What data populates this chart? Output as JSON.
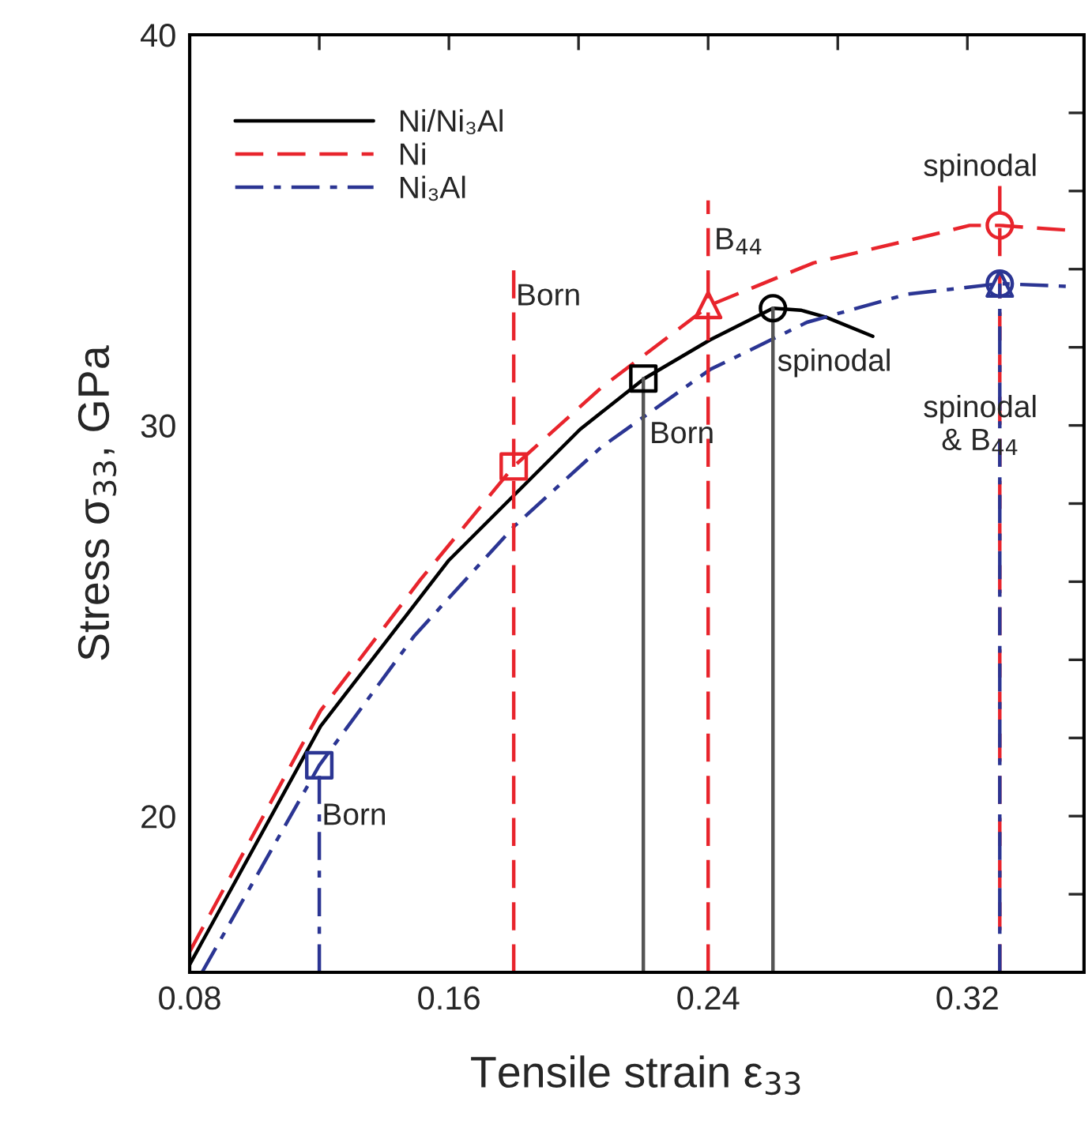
{
  "chart_data": {
    "type": "line",
    "xlabel": "Tensile strain ε$_{33}$",
    "ylabel": "Stress σ$_{33}$, GPa",
    "xlim": [
      0.08,
      0.356
    ],
    "ylim": [
      16,
      40
    ],
    "xticks": [
      0.08,
      {
        "value": 0.12,
        "label": null
      },
      0.16,
      {
        "value": 0.2,
        "label": null
      },
      0.24,
      {
        "value": 0.28,
        "label": null
      },
      0.32
    ],
    "yticks": [
      {
        "value": 18,
        "label": null
      },
      20,
      {
        "value": 22,
        "label": null
      },
      {
        "value": 24,
        "label": null
      },
      {
        "value": 26,
        "label": null
      },
      {
        "value": 28,
        "label": null
      },
      30,
      {
        "value": 32,
        "label": null
      },
      {
        "value": 34,
        "label": null
      },
      {
        "value": 36,
        "label": null
      },
      {
        "value": 38,
        "label": null
      },
      40
    ],
    "grid": false,
    "legend": "top left",
    "series": [
      {
        "name": "Ni/Ni₃Al",
        "color": "#000000",
        "line_style": "solid",
        "x": [
          0.08,
          0.1204,
          0.16,
          0.2005,
          0.2203,
          0.2406,
          0.26,
          0.2686,
          0.2764,
          0.2908
        ],
        "values": [
          16.2,
          22.3,
          26.55,
          29.9,
          31.2,
          32.19,
          33.0,
          32.95,
          32.77,
          32.28
        ]
      },
      {
        "name": "Ni",
        "color": "#e8242c",
        "line_style": "dashed",
        "x": [
          0.08,
          0.1204,
          0.1513,
          0.18,
          0.2068,
          0.2406,
          0.2725,
          0.3091,
          0.3207,
          0.33,
          0.3506
        ],
        "values": [
          16.53,
          22.7,
          26.06,
          28.95,
          30.95,
          33.08,
          34.16,
          34.88,
          35.12,
          35.12,
          35.0
        ]
      },
      {
        "name": "Ni₃Al",
        "color": "#2b3593",
        "line_style": "dashdot",
        "x": [
          0.0838,
          0.12,
          0.1494,
          0.1803,
          0.2068,
          0.2406,
          0.2705,
          0.3014,
          0.33,
          0.3506
        ],
        "values": [
          16.0,
          21.3,
          24.62,
          27.43,
          29.43,
          31.43,
          32.64,
          33.36,
          33.63,
          33.56
        ]
      },
      {
        "type": "line",
        "color": "#2b3593",
        "line_style": "dashdot",
        "x": [
          0.12,
          0.12
        ],
        "values": [
          16,
          21.3
        ]
      },
      {
        "type": "line",
        "color": "#e8242c",
        "line_style": "dashed",
        "x": [
          0.18,
          0.18
        ],
        "values": [
          16,
          34.08
        ]
      },
      {
        "type": "line",
        "color": "#555555",
        "line_style": "solid",
        "x": [
          0.22,
          0.22
        ],
        "values": [
          16,
          31.2
        ]
      },
      {
        "type": "line",
        "color": "#e8242c",
        "line_style": "dashed",
        "x": [
          0.24,
          0.24
        ],
        "values": [
          16,
          35.76
        ]
      },
      {
        "type": "line",
        "color": "#555555",
        "line_style": "solid",
        "x": [
          0.26,
          0.26
        ],
        "values": [
          16,
          33.0
        ]
      },
      {
        "type": "line",
        "color": "#e8242c",
        "line_style": "dashed",
        "x": [
          0.33,
          0.33
        ],
        "values": [
          16,
          36.16
        ]
      },
      {
        "type": "line",
        "color": "#2b3593",
        "line_style": "dashdot",
        "x": [
          0.33,
          0.33
        ],
        "values": [
          16,
          33.63
        ]
      },
      {
        "type": "scatter",
        "color": "#2b3593",
        "marker": "square",
        "x": [
          0.12
        ],
        "values": [
          21.3
        ]
      },
      {
        "type": "scatter",
        "color": "#e8242c",
        "marker": "square",
        "x": [
          0.18
        ],
        "values": [
          28.95
        ]
      },
      {
        "type": "scatter",
        "color": "#000000",
        "marker": "square",
        "x": [
          0.22
        ],
        "values": [
          31.2
        ]
      },
      {
        "type": "scatter",
        "color": "#e8242c",
        "marker": "triangle",
        "x": [
          0.24
        ],
        "values": [
          33.08
        ]
      },
      {
        "type": "scatter",
        "color": "#000000",
        "marker": "circle",
        "x": [
          0.26
        ],
        "values": [
          33.0
        ]
      },
      {
        "type": "scatter",
        "color": "#e8242c",
        "marker": "circle",
        "x": [
          0.33
        ],
        "values": [
          35.12
        ]
      },
      {
        "type": "scatter",
        "color": "#2b3593",
        "marker": "circle",
        "x": [
          0.33
        ],
        "values": [
          33.63
        ]
      },
      {
        "type": "scatter",
        "color": "#2b3593",
        "marker": "triangle",
        "x": [
          0.33
        ],
        "values": [
          33.63
        ]
      }
    ],
    "annotations": [
      {
        "text": "Born",
        "x": 0.1208,
        "y": 19.98
      },
      {
        "text": "Born",
        "x": 0.1807,
        "y": 33.28
      },
      {
        "text": "Born",
        "x": 0.2219,
        "y": 29.75
      },
      {
        "text": "B$_{44}$",
        "x": 0.2419,
        "y": 34.71
      },
      {
        "text": "spinodal",
        "x": 0.2613,
        "y": 31.6
      },
      "spinodal",
      "spinodal\n& B$_{44}$"
    ]
  }
}
